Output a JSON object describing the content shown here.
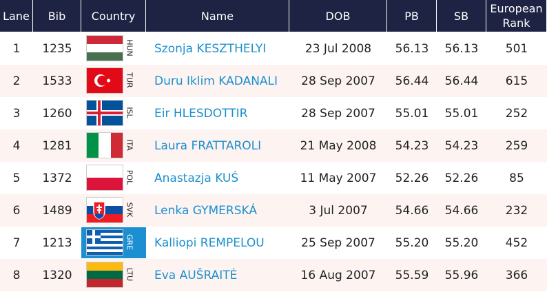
{
  "header": {
    "columns": [
      "Lane",
      "Bib",
      "Country",
      "Name",
      "DOB",
      "PB",
      "SB",
      "European Rank"
    ]
  },
  "rows": [
    {
      "lane": "1",
      "bib": "1235",
      "country": "HUN",
      "name": "Szonja KESZTHELYI",
      "dob": "23 Jul 2008",
      "pb": "56.13",
      "sb": "56.13",
      "rank": "501"
    },
    {
      "lane": "2",
      "bib": "1533",
      "country": "TUR",
      "name": "Duru Iklim KADANALI",
      "dob": "28 Sep 2007",
      "pb": "56.44",
      "sb": "56.44",
      "rank": "615"
    },
    {
      "lane": "3",
      "bib": "1260",
      "country": "ISL",
      "name": "Eir HLESDOTTIR",
      "dob": "28 Sep 2007",
      "pb": "55.01",
      "sb": "55.01",
      "rank": "252"
    },
    {
      "lane": "4",
      "bib": "1281",
      "country": "ITA",
      "name": "Laura FRATTAROLI",
      "dob": "21 May 2008",
      "pb": "54.23",
      "sb": "54.23",
      "rank": "259"
    },
    {
      "lane": "5",
      "bib": "1372",
      "country": "POL",
      "name": "Anastazja KUŚ",
      "dob": "11 May 2007",
      "pb": "52.26",
      "sb": "52.26",
      "rank": "85"
    },
    {
      "lane": "6",
      "bib": "1489",
      "country": "SVK",
      "name": "Lenka GYMERSKÁ",
      "dob": "3 Jul 2007",
      "pb": "54.66",
      "sb": "54.66",
      "rank": "232"
    },
    {
      "lane": "7",
      "bib": "1213",
      "country": "GRE",
      "name": "Kalliopi REMPELOU",
      "dob": "25 Sep 2007",
      "pb": "55.20",
      "sb": "55.20",
      "rank": "452"
    },
    {
      "lane": "8",
      "bib": "1320",
      "country": "LTU",
      "name": "Eva AUŠRAITĖ",
      "dob": "16 Aug 2007",
      "pb": "55.59",
      "sb": "55.96",
      "rank": "366"
    }
  ]
}
